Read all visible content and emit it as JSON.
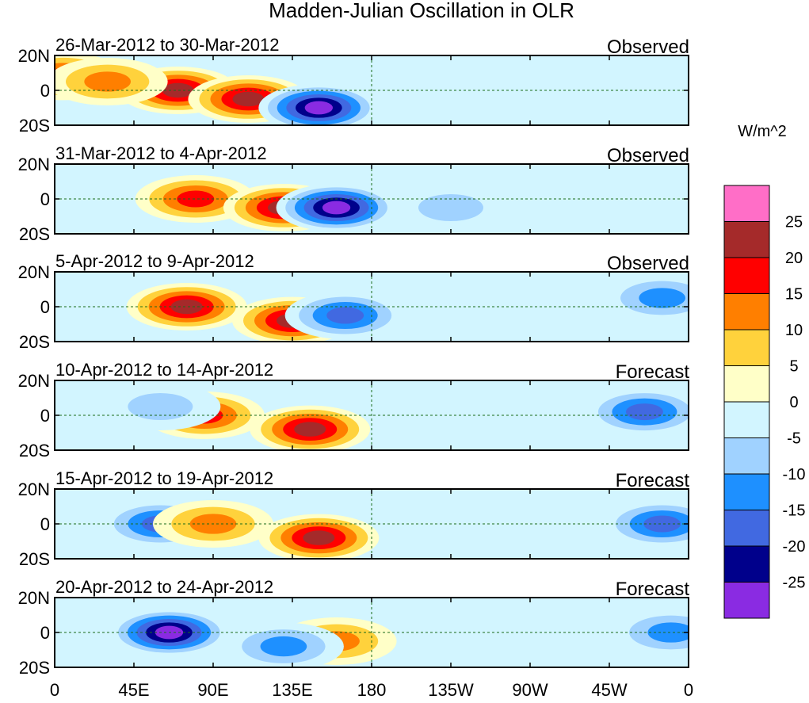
{
  "chart_data": {
    "type": "heatmap",
    "title": "Madden-Julian Oscillation in OLR",
    "units_label": "W/m^2",
    "x_ticks": [
      "0",
      "45E",
      "90E",
      "135E",
      "180",
      "135W",
      "90W",
      "45W",
      "0"
    ],
    "x_tick_values": [
      0,
      45,
      90,
      135,
      180,
      225,
      270,
      315,
      360
    ],
    "xlim": [
      0,
      360
    ],
    "y_ticks": [
      "20N",
      "0",
      "20S"
    ],
    "y_tick_values": [
      20,
      0,
      -20
    ],
    "ylim": [
      -20,
      20
    ],
    "colorbar": {
      "labels": [
        "25",
        "20",
        "15",
        "10",
        "5",
        "0",
        "-5",
        "-10",
        "-15",
        "-20",
        "-25"
      ],
      "colors": [
        "#ff6ec7",
        "#a52a2a",
        "#ff0000",
        "#ff7f00",
        "#ffd23c",
        "#ffffc8",
        "#d2f5ff",
        "#a0d2ff",
        "#1e90ff",
        "#4169e1",
        "#00008b",
        "#8a2be2"
      ]
    },
    "panels": [
      {
        "period": "26-Mar-2012 to 30-Mar-2012",
        "kind": "Observed",
        "anomalies": [
          {
            "lon": 5,
            "lat": 8,
            "value": 20
          },
          {
            "lon": 70,
            "lat": 0,
            "value": 25
          },
          {
            "lon": 110,
            "lat": -5,
            "value": 25
          },
          {
            "lon": 150,
            "lat": -10,
            "value": -30
          },
          {
            "lon": 30,
            "lat": 5,
            "value": 15
          }
        ]
      },
      {
        "period": "31-Mar-2012 to 4-Apr-2012",
        "kind": "Observed",
        "anomalies": [
          {
            "lon": 80,
            "lat": 0,
            "value": 20
          },
          {
            "lon": 130,
            "lat": -5,
            "value": 25
          },
          {
            "lon": 160,
            "lat": -5,
            "value": -30
          },
          {
            "lon": 225,
            "lat": -5,
            "value": -10
          }
        ]
      },
      {
        "period": "5-Apr-2012 to 9-Apr-2012",
        "kind": "Observed",
        "anomalies": [
          {
            "lon": 75,
            "lat": 0,
            "value": 25
          },
          {
            "lon": 135,
            "lat": -8,
            "value": 25
          },
          {
            "lon": 165,
            "lat": -5,
            "value": -20
          },
          {
            "lon": 345,
            "lat": 5,
            "value": -15
          }
        ]
      },
      {
        "period": "10-Apr-2012 to 14-Apr-2012",
        "kind": "Forecast",
        "anomalies": [
          {
            "lon": 85,
            "lat": 0,
            "value": 20
          },
          {
            "lon": 145,
            "lat": -8,
            "value": 25
          },
          {
            "lon": 335,
            "lat": 2,
            "value": -20
          },
          {
            "lon": 60,
            "lat": 5,
            "value": -10
          }
        ]
      },
      {
        "period": "15-Apr-2012 to 19-Apr-2012",
        "kind": "Forecast",
        "anomalies": [
          {
            "lon": 60,
            "lat": 0,
            "value": -20
          },
          {
            "lon": 150,
            "lat": -8,
            "value": 25
          },
          {
            "lon": 90,
            "lat": 0,
            "value": 15
          },
          {
            "lon": 345,
            "lat": 0,
            "value": -20
          }
        ]
      },
      {
        "period": "20-Apr-2012 to 24-Apr-2012",
        "kind": "Forecast",
        "anomalies": [
          {
            "lon": 65,
            "lat": 0,
            "value": -30
          },
          {
            "lon": 160,
            "lat": -5,
            "value": 15
          },
          {
            "lon": 130,
            "lat": -8,
            "value": -15
          },
          {
            "lon": 350,
            "lat": 0,
            "value": -15
          }
        ]
      }
    ]
  }
}
